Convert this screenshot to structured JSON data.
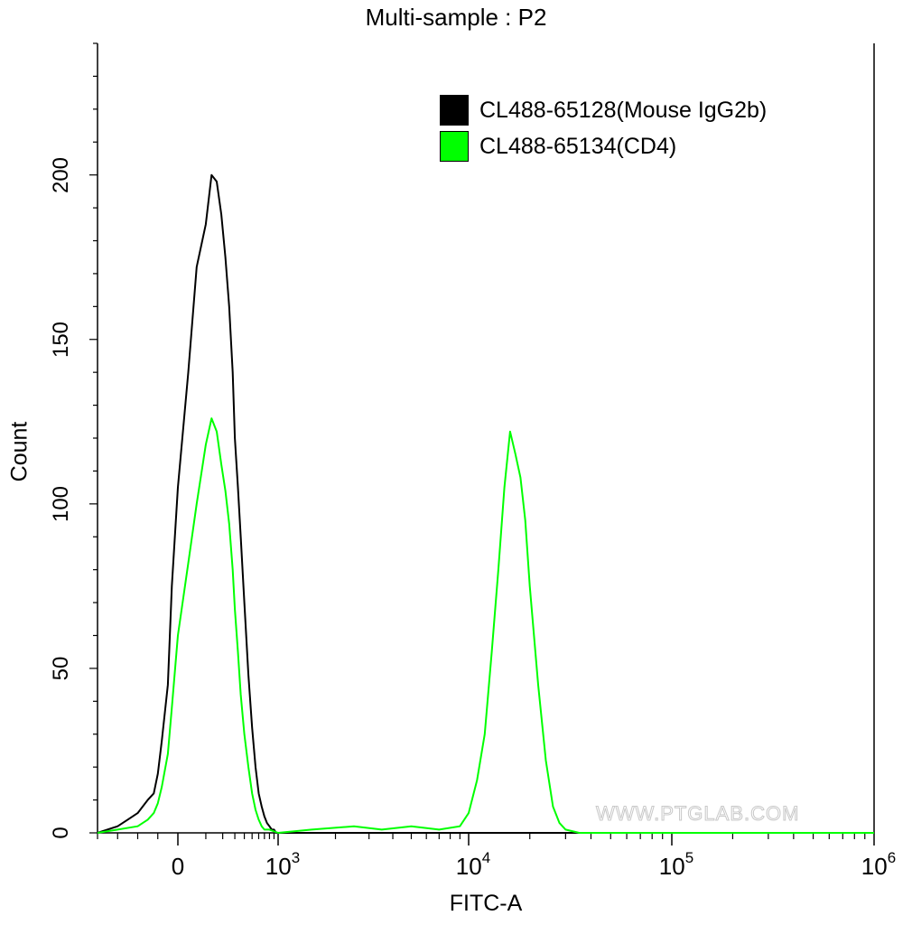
{
  "chart_data": {
    "type": "histogram-line",
    "title": "Multi-sample : P2",
    "xlabel": "FITC-A",
    "ylabel": "Count",
    "x_scale": "biexponential",
    "xlim": [
      -400,
      1000000
    ],
    "ylim": [
      0,
      240
    ],
    "y_ticks": [
      0,
      50,
      100,
      150,
      200
    ],
    "x_tick_labels": [
      {
        "value": 0,
        "base": "0",
        "exp": ""
      },
      {
        "value": 1000,
        "base": "10",
        "exp": "3"
      },
      {
        "value": 10000,
        "base": "10",
        "exp": "4"
      },
      {
        "value": 100000,
        "base": "10",
        "exp": "5"
      },
      {
        "value": 1000000,
        "base": "10",
        "exp": "6"
      }
    ],
    "legend_position": "top-right",
    "watermark": "WWW.PTGLAB.COM",
    "series": [
      {
        "name": "CL488-65128(Mouse IgG2b)",
        "color": "#000000",
        "x": [
          -400,
          -300,
          -250,
          -200,
          -150,
          -120,
          -100,
          -80,
          -50,
          -30,
          0,
          30,
          60,
          100,
          130,
          160,
          190,
          220,
          250,
          280,
          300,
          330,
          360,
          400,
          450,
          500,
          550,
          600,
          650,
          700,
          750,
          800,
          850,
          900,
          950,
          1000,
          1200,
          1500,
          3000,
          5000,
          10000,
          30000,
          1000000
        ],
        "y": [
          0,
          2,
          4,
          6,
          10,
          12,
          18,
          28,
          45,
          75,
          105,
          140,
          172,
          185,
          200,
          198,
          188,
          175,
          160,
          140,
          120,
          105,
          90,
          70,
          48,
          32,
          20,
          12,
          8,
          5,
          3,
          2,
          1,
          1,
          0,
          0,
          0,
          0,
          0,
          0,
          0,
          0,
          0
        ]
      },
      {
        "name": "CL488-65134(CD4)",
        "color": "#00ff00",
        "x": [
          -400,
          -300,
          -200,
          -150,
          -120,
          -100,
          -80,
          -50,
          -30,
          0,
          30,
          60,
          100,
          130,
          160,
          190,
          220,
          250,
          280,
          300,
          330,
          360,
          400,
          450,
          500,
          550,
          600,
          650,
          700,
          800,
          1000,
          1500,
          2500,
          3500,
          5000,
          7000,
          9000,
          10000,
          11000,
          12000,
          13000,
          14000,
          15000,
          16000,
          17000,
          18000,
          19000,
          20000,
          22000,
          24000,
          26000,
          28000,
          30000,
          35000,
          1000000
        ],
        "y": [
          0,
          1,
          2,
          4,
          6,
          9,
          14,
          24,
          38,
          60,
          82,
          100,
          118,
          126,
          122,
          112,
          104,
          94,
          80,
          68,
          55,
          42,
          30,
          20,
          12,
          7,
          4,
          2,
          1,
          1,
          0,
          1,
          2,
          1,
          2,
          1,
          2,
          6,
          16,
          30,
          55,
          80,
          105,
          122,
          115,
          108,
          95,
          75,
          45,
          22,
          8,
          3,
          1,
          0,
          0
        ]
      }
    ]
  }
}
